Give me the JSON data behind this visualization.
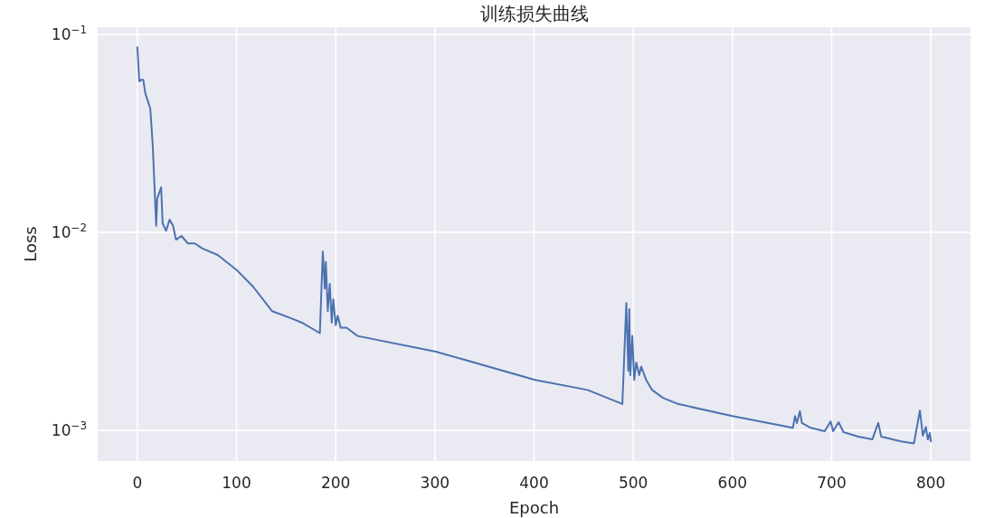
{
  "chart_data": {
    "type": "line",
    "title": "训练损失曲线",
    "xlabel": "Epoch",
    "ylabel": "Loss",
    "x": [
      0,
      2,
      4,
      6,
      8,
      13,
      15.5,
      19,
      20,
      24,
      25.5,
      29,
      32.5,
      36,
      39,
      44.5,
      51,
      58,
      65.5,
      81,
      93,
      101,
      117,
      136,
      154,
      166,
      184,
      187,
      189,
      190,
      192,
      194,
      196,
      197.5,
      200,
      202,
      205,
      211,
      222,
      301,
      401,
      454,
      489,
      493,
      495,
      496,
      497,
      499,
      501,
      503,
      506,
      508,
      513,
      519,
      530,
      545,
      600,
      661,
      663,
      665,
      668,
      670,
      679,
      693,
      699,
      701.5,
      707,
      712,
      727,
      741,
      747,
      750,
      770,
      783,
      789,
      792,
      795,
      797,
      799,
      800
    ],
    "series": [
      {
        "color": "#4c72b0",
        "values": [
          0.0863,
          0.058,
          0.059,
          0.059,
          0.0505,
          0.0423,
          0.0277,
          0.0108,
          0.0148,
          0.0169,
          0.0111,
          0.0102,
          0.0116,
          0.0108,
          0.0092,
          0.0096,
          0.0088,
          0.0088,
          0.0083,
          0.0077,
          0.0069,
          0.0064,
          0.0053,
          0.004,
          0.0037,
          0.0035,
          0.0031,
          0.008,
          0.0052,
          0.0071,
          0.004,
          0.0055,
          0.0035,
          0.0046,
          0.0034,
          0.0038,
          0.0033,
          0.0033,
          0.003,
          0.0025,
          0.0018,
          0.0016,
          0.00136,
          0.0044,
          0.002,
          0.0041,
          0.0019,
          0.003,
          0.0018,
          0.0022,
          0.0019,
          0.0021,
          0.0018,
          0.0016,
          0.00146,
          0.00136,
          0.00118,
          0.00103,
          0.00118,
          0.00109,
          0.00125,
          0.00109,
          0.00103,
          0.00099,
          0.00111,
          0.00099,
          0.0011,
          0.00098,
          0.00093,
          0.0009,
          0.00109,
          0.00093,
          0.00088,
          0.00086,
          0.00126,
          0.00094,
          0.00104,
          0.0009,
          0.00097,
          0.00088
        ]
      }
    ],
    "xlim": [
      -40,
      840
    ],
    "ylim": [
      0.0007,
      0.109
    ],
    "xticks": [
      0,
      100,
      200,
      300,
      400,
      500,
      600,
      700,
      800
    ],
    "yticks": [
      {
        "value": 0.1,
        "label": "10$^{−1}$"
      },
      {
        "value": 0.01,
        "label": "10$^{−2}$"
      },
      {
        "value": 0.001,
        "label": "10$^{−3}$"
      }
    ],
    "log": "y",
    "grid": true
  }
}
